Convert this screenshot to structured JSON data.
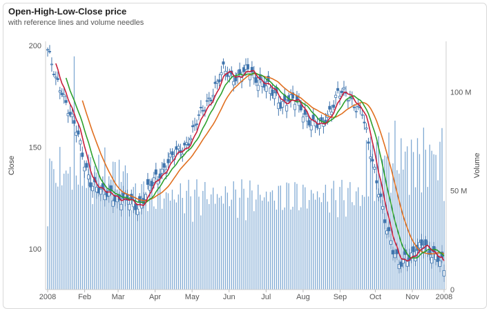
{
  "title": "Open-High-Low-Close price",
  "subtitle": "with reference lines and volume needles",
  "chart_data": {
    "type": "candlestick",
    "title": "Open-High-Low-Close price",
    "subtitle": "with reference lines and volume needles",
    "ylabel_left": "Close",
    "ylabel_right": "Volume",
    "price_range": [
      80,
      202
    ],
    "volume_range": [
      0,
      120000000
    ],
    "price_ticks": [
      "200",
      "150",
      "100"
    ],
    "volume_ticks": [
      "100 M",
      "50 M",
      "0"
    ],
    "x_ticks": [
      "2008",
      "Feb",
      "Mar",
      "Apr",
      "May",
      "Jun",
      "Jul",
      "Aug",
      "Sep",
      "Oct",
      "Nov",
      "2008"
    ],
    "colors": {
      "candle": "#3f74ad",
      "volume": "#7fa9d3",
      "ma_short": "#c81e3a",
      "ma_mid": "#2ca02c",
      "ma_long": "#e06f1f"
    },
    "close_path": [
      [
        0,
        198
      ],
      [
        4,
        182
      ],
      [
        7,
        178
      ],
      [
        10,
        170
      ],
      [
        14,
        158
      ],
      [
        18,
        142
      ],
      [
        21,
        134
      ],
      [
        24,
        130
      ],
      [
        27,
        126
      ],
      [
        31,
        128
      ],
      [
        35,
        124
      ],
      [
        39,
        123
      ],
      [
        43,
        122
      ],
      [
        46,
        123
      ],
      [
        50,
        130
      ],
      [
        54,
        136
      ],
      [
        58,
        142
      ],
      [
        62,
        146
      ],
      [
        66,
        149
      ],
      [
        70,
        156
      ],
      [
        74,
        164
      ],
      [
        78,
        172
      ],
      [
        82,
        180
      ],
      [
        86,
        187
      ],
      [
        90,
        185
      ],
      [
        94,
        186
      ],
      [
        98,
        187
      ],
      [
        102,
        184
      ],
      [
        106,
        182
      ],
      [
        110,
        176
      ],
      [
        114,
        172
      ],
      [
        118,
        174
      ],
      [
        122,
        171
      ],
      [
        126,
        166
      ],
      [
        130,
        162
      ],
      [
        134,
        159
      ],
      [
        138,
        168
      ],
      [
        142,
        177
      ],
      [
        146,
        175
      ],
      [
        150,
        172
      ],
      [
        154,
        168
      ],
      [
        157,
        150
      ],
      [
        160,
        138
      ],
      [
        163,
        126
      ],
      [
        166,
        110
      ],
      [
        169,
        98
      ],
      [
        172,
        93
      ],
      [
        175,
        97
      ],
      [
        178,
        96
      ],
      [
        181,
        98
      ],
      [
        184,
        103
      ],
      [
        187,
        100
      ],
      [
        190,
        96
      ],
      [
        193,
        92
      ],
      [
        194,
        88
      ]
    ]
  }
}
